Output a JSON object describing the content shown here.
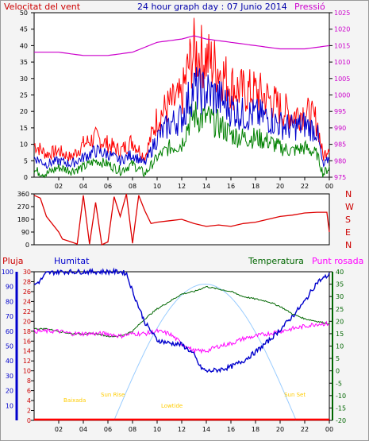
{
  "header": {
    "wind_label": "Velocitat del vent",
    "title": "24 hour graph day : 07 Junio 2014",
    "pressure_label": "Pressió"
  },
  "bottom_header": {
    "rain_label": "Pluja",
    "humidity_label": "Humitat",
    "temperature_label": "Temperatura",
    "dewpoint_label": "Punt rosada"
  },
  "direction_letters": [
    "N",
    "W",
    "S",
    "E",
    "N"
  ],
  "sun_labels": [
    "Baixada",
    "Sun Rise",
    "Lowtide",
    "Sun Set"
  ],
  "colors": {
    "wind_gust": "#ff0000",
    "wind_avg": "#0000cc",
    "wind_min": "#008000",
    "pressure": "#cc00cc",
    "direction": "#dd0000",
    "humidity": "#0000cc",
    "temperature": "#006600",
    "dewpoint": "#ff00ff",
    "rain": "#ff0000",
    "sun": "#99ccff",
    "sun_label": "#ffcc00",
    "axis_left": "#cc0000",
    "axis_right": "#cc00cc"
  },
  "chart_data": [
    {
      "type": "line",
      "name": "wind_pressure",
      "x_ticks": [
        "02",
        "04",
        "06",
        "08",
        "10",
        "12",
        "14",
        "16",
        "18",
        "20",
        "22",
        "00"
      ],
      "y_left_ticks": [
        0,
        5,
        10,
        15,
        20,
        25,
        30,
        35,
        40,
        45,
        50
      ],
      "y_right_ticks": [
        975,
        980,
        985,
        990,
        995,
        1000,
        1005,
        1010,
        1015,
        1020,
        1025
      ],
      "xlim": [
        0,
        24
      ],
      "ylim_left": [
        0,
        50
      ],
      "ylim_right": [
        975,
        1025
      ],
      "series": [
        {
          "key": "gust",
          "x": [
            0,
            1,
            2,
            3,
            4,
            5,
            6,
            7,
            8,
            9,
            10,
            11,
            12,
            12.5,
            13,
            13.5,
            14,
            15,
            16,
            17,
            18,
            19,
            20,
            21,
            22,
            23,
            23.5,
            24
          ],
          "values": [
            10,
            7,
            8,
            6,
            10,
            12,
            10,
            8,
            11,
            6,
            18,
            22,
            24,
            33,
            38,
            37,
            36,
            33,
            28,
            26,
            26,
            24,
            21,
            19,
            20,
            17,
            6,
            10
          ]
        },
        {
          "key": "avg",
          "x": [
            0,
            1,
            2,
            3,
            4,
            5,
            6,
            7,
            8,
            9,
            10,
            11,
            12,
            12.5,
            13,
            13.5,
            14,
            15,
            16,
            17,
            18,
            19,
            20,
            21,
            22,
            23,
            23.5,
            24
          ],
          "values": [
            6,
            4,
            5,
            4,
            6,
            8,
            7,
            5,
            7,
            4,
            12,
            16,
            18,
            23,
            27,
            26,
            26,
            24,
            21,
            19,
            19,
            18,
            16,
            15,
            16,
            14,
            3,
            6
          ]
        },
        {
          "key": "min",
          "x": [
            0,
            1,
            2,
            3,
            4,
            5,
            6,
            7,
            8,
            9,
            10,
            11,
            12,
            12.5,
            13,
            13.5,
            14,
            15,
            16,
            17,
            18,
            19,
            20,
            21,
            22,
            23,
            23.5,
            24
          ],
          "values": [
            2,
            1,
            3,
            2,
            3,
            5,
            4,
            2,
            4,
            1,
            6,
            9,
            10,
            16,
            19,
            18,
            18,
            16,
            13,
            12,
            12,
            11,
            9,
            8,
            9,
            7,
            1,
            3
          ]
        },
        {
          "key": "pressure",
          "x": [
            0,
            2,
            4,
            6,
            8,
            10,
            12,
            13,
            14,
            16,
            18,
            20,
            22,
            24
          ],
          "values": [
            1013,
            1013,
            1012,
            1012,
            1013,
            1016,
            1017,
            1018,
            1017,
            1016,
            1015,
            1014,
            1014,
            1015
          ]
        }
      ]
    },
    {
      "type": "line",
      "name": "wind_direction",
      "y_ticks": [
        0,
        90,
        180,
        270,
        360
      ],
      "ylim": [
        0,
        360
      ],
      "x": [
        0,
        0.5,
        1,
        2,
        2.3,
        3,
        3.5,
        4,
        4.5,
        5,
        5.5,
        6,
        6.5,
        7,
        7.5,
        8,
        8.5,
        9,
        9.5,
        10,
        11,
        12,
        13,
        14,
        15,
        16,
        17,
        18,
        19,
        20,
        21,
        22,
        23,
        23.8,
        24
      ],
      "values": [
        350,
        330,
        200,
        90,
        40,
        20,
        5,
        350,
        5,
        300,
        0,
        20,
        340,
        200,
        360,
        10,
        350,
        240,
        150,
        160,
        170,
        180,
        150,
        130,
        140,
        130,
        150,
        160,
        180,
        200,
        210,
        225,
        230,
        230,
        90
      ]
    },
    {
      "type": "line",
      "name": "humidity_temperature",
      "y_left_ticks": [
        10,
        20,
        30,
        40,
        50,
        60,
        70,
        80,
        90,
        100
      ],
      "y_rain_ticks": [
        0,
        2,
        4,
        6,
        8,
        10,
        12,
        14,
        16,
        18,
        20,
        22,
        24,
        26,
        28,
        30
      ],
      "y_right_ticks": [
        -20,
        -15,
        -10,
        -5,
        0,
        5,
        10,
        15,
        20,
        25,
        30,
        35,
        40
      ],
      "ylim_left": [
        0,
        100
      ],
      "ylim_right": [
        -20,
        40
      ],
      "series": [
        {
          "key": "humidity",
          "x": [
            0,
            0.5,
            1,
            2,
            3,
            4,
            5,
            6,
            7,
            7.5,
            8,
            9,
            10,
            11,
            12,
            12.5,
            13,
            13.5,
            14,
            15,
            16,
            17,
            18,
            19,
            20,
            21,
            22,
            23,
            24
          ],
          "values": [
            91,
            94,
            99,
            100,
            100,
            100,
            100,
            100,
            100,
            99,
            87,
            66,
            54,
            52,
            51,
            48,
            44,
            36,
            33,
            34,
            36,
            40,
            46,
            53,
            61,
            70,
            80,
            93,
            98
          ]
        },
        {
          "key": "temperature",
          "x": [
            0,
            1,
            2,
            3,
            4,
            5,
            6,
            7,
            8,
            9,
            10,
            11,
            12,
            13,
            14,
            15,
            16,
            17,
            18,
            19,
            20,
            21,
            22,
            23,
            24
          ],
          "values": [
            17,
            17,
            16,
            15,
            15,
            15,
            14,
            14,
            16,
            21,
            25,
            28,
            31,
            32,
            34,
            33,
            32,
            30,
            29,
            28,
            26,
            23,
            21,
            20,
            19
          ]
        },
        {
          "key": "dewpoint",
          "x": [
            0,
            1,
            2,
            3,
            4,
            5,
            6,
            7,
            8,
            9,
            10,
            11,
            12,
            13,
            14,
            15,
            16,
            17,
            18,
            19,
            20,
            21,
            22,
            23,
            24
          ],
          "values": [
            16,
            16,
            16,
            15,
            15,
            15,
            15,
            14,
            15,
            15,
            16,
            15,
            11,
            8,
            8,
            10,
            11,
            13,
            14,
            15,
            16,
            17,
            18,
            19,
            19
          ]
        },
        {
          "key": "rain",
          "x": [
            0,
            24
          ],
          "values": [
            0,
            0
          ]
        }
      ],
      "sun_curve": {
        "rise": 6.5,
        "set": 21.3,
        "peak_value": 35
      }
    }
  ]
}
